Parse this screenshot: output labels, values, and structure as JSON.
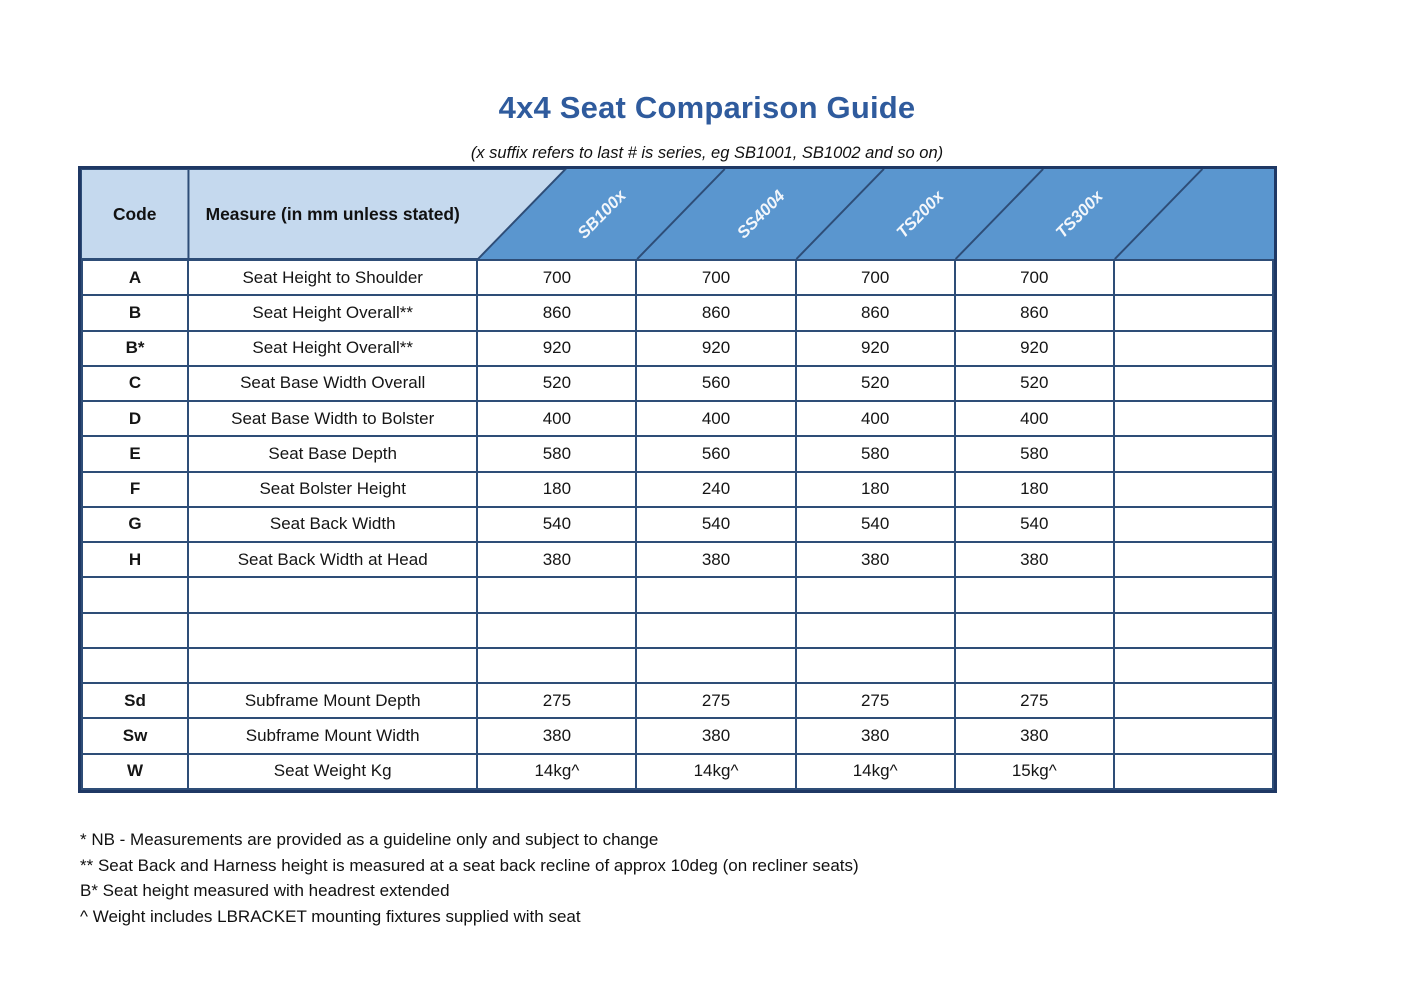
{
  "title": "4x4 Seat Comparison Guide",
  "subtitle": "(x suffix refers to last # is series, eg SB1001, SB1002 and so on)",
  "colors": {
    "title_blue": "#2F5B9D",
    "header_light_blue": "#C5D9EE",
    "header_dark_blue": "#5A96CF",
    "border_navy": "#2E4D77",
    "outer_border_navy": "#1F3864",
    "header_label_white": "#F2F6FB"
  },
  "table": {
    "code_header": "Code",
    "measure_header": "Measure (in mm unless stated)",
    "product_columns": [
      "SB100x",
      "SS4004",
      "TS200x",
      "TS300x",
      ""
    ],
    "rows": [
      {
        "code": "A",
        "measure": "Seat Height to Shoulder",
        "values": [
          "700",
          "700",
          "700",
          "700",
          ""
        ]
      },
      {
        "code": "B",
        "measure": "Seat Height Overall**",
        "values": [
          "860",
          "860",
          "860",
          "860",
          ""
        ]
      },
      {
        "code": "B*",
        "measure": "Seat Height Overall**",
        "values": [
          "920",
          "920",
          "920",
          "920",
          ""
        ]
      },
      {
        "code": "C",
        "measure": "Seat Base Width Overall",
        "values": [
          "520",
          "560",
          "520",
          "520",
          ""
        ]
      },
      {
        "code": "D",
        "measure": "Seat Base Width to Bolster",
        "values": [
          "400",
          "400",
          "400",
          "400",
          ""
        ]
      },
      {
        "code": "E",
        "measure": "Seat Base Depth",
        "values": [
          "580",
          "560",
          "580",
          "580",
          ""
        ]
      },
      {
        "code": "F",
        "measure": "Seat Bolster Height",
        "values": [
          "180",
          "240",
          "180",
          "180",
          ""
        ]
      },
      {
        "code": "G",
        "measure": "Seat Back Width",
        "values": [
          "540",
          "540",
          "540",
          "540",
          ""
        ]
      },
      {
        "code": "H",
        "measure": "Seat Back Width at Head",
        "values": [
          "380",
          "380",
          "380",
          "380",
          ""
        ]
      },
      {
        "code": "",
        "measure": "",
        "values": [
          "",
          "",
          "",
          "",
          ""
        ]
      },
      {
        "code": "",
        "measure": "",
        "values": [
          "",
          "",
          "",
          "",
          ""
        ]
      },
      {
        "code": "",
        "measure": "",
        "values": [
          "",
          "",
          "",
          "",
          ""
        ]
      },
      {
        "code": "Sd",
        "measure": "Subframe Mount Depth",
        "values": [
          "275",
          "275",
          "275",
          "275",
          ""
        ]
      },
      {
        "code": "Sw",
        "measure": "Subframe Mount Width",
        "values": [
          "380",
          "380",
          "380",
          "380",
          ""
        ]
      },
      {
        "code": "W",
        "measure": "Seat Weight Kg",
        "values": [
          "14kg^",
          "14kg^",
          "14kg^",
          "15kg^",
          ""
        ]
      }
    ]
  },
  "footnotes": [
    "* NB - Measurements are provided as a guideline only and subject to change",
    "** Seat Back and Harness height is measured at a seat back recline of approx 10deg (on recliner seats)",
    "B* Seat height measured with headrest extended",
    "^ Weight includes LBRACKET mounting fixtures supplied with seat"
  ]
}
